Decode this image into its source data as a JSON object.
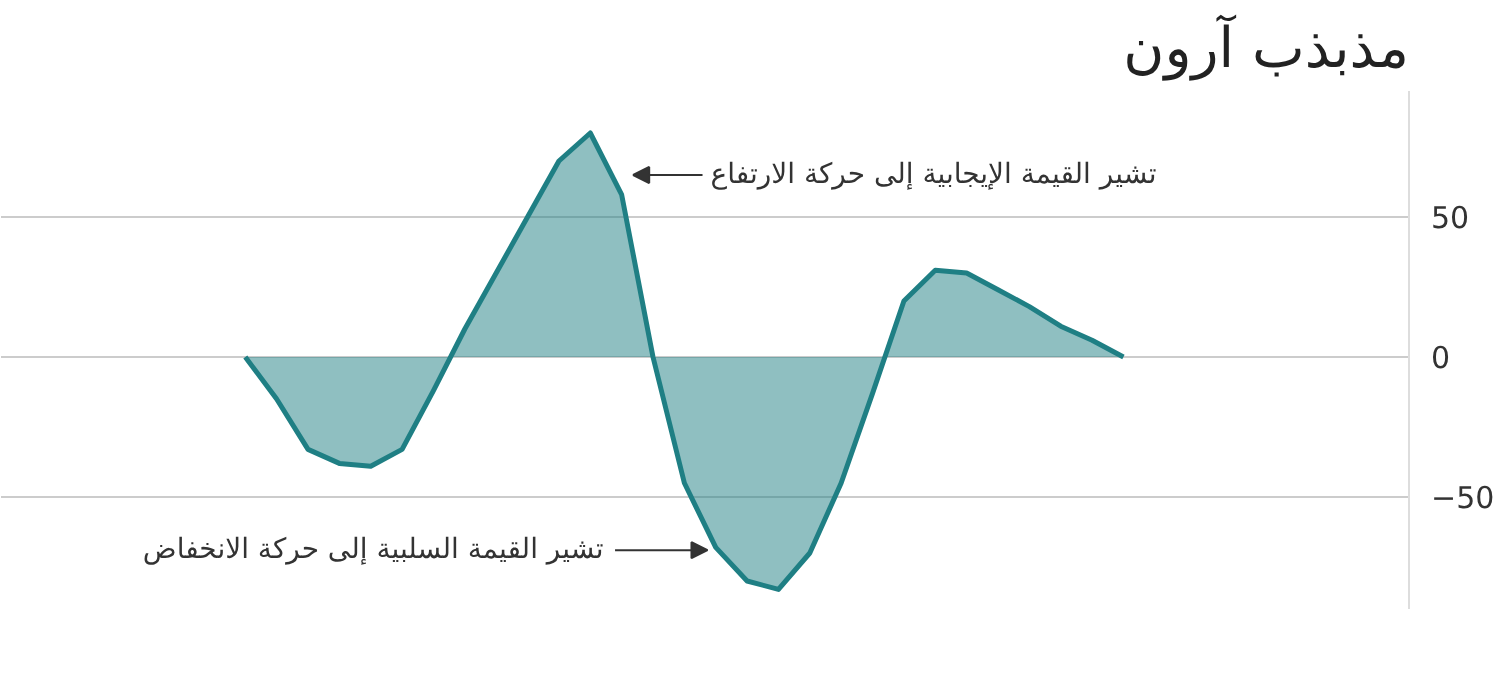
{
  "chart_data": {
    "type": "area",
    "title": "مذبذب آرون",
    "categories": [
      null,
      null,
      null,
      null,
      null,
      null,
      null,
      null,
      null,
      null,
      null,
      null,
      null,
      null,
      null,
      null,
      null,
      null,
      null,
      null,
      null,
      null,
      null,
      null,
      null,
      null,
      null,
      null,
      null
    ],
    "series": [
      {
        "color": "#1f7f84",
        "values": [
          0,
          -15,
          -33,
          -38,
          -39,
          -33,
          -12,
          10,
          30,
          50,
          70,
          80,
          58,
          0,
          -45,
          -68,
          -80,
          -83,
          -70,
          -45,
          -13,
          20,
          31,
          30,
          24,
          18,
          11,
          6,
          0
        ]
      }
    ],
    "ylim": [
      -90,
      95
    ],
    "yticks": [
      -50,
      0,
      50
    ],
    "grid": "y",
    "annotations": [
      "تشير القيمة الإيجابية إلى حركة الارتفاع",
      "تشير القيمة السلبية إلى حركة الانخفاض"
    ]
  }
}
